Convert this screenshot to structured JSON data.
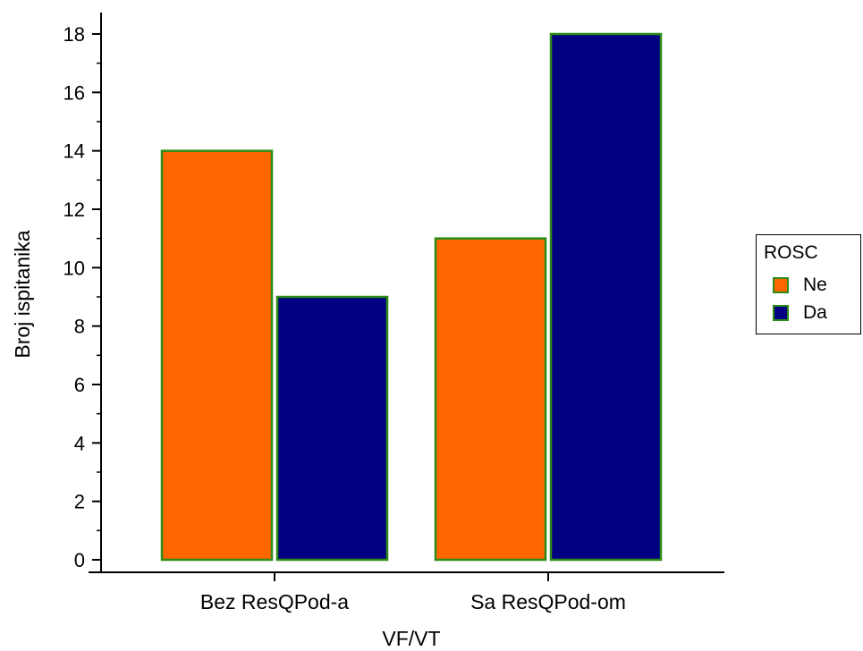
{
  "chart_data": {
    "type": "bar",
    "title": "",
    "xlabel": "VF/VT",
    "ylabel": "Broj ispitanika",
    "categories": [
      "Bez ResQPod-a",
      "Sa ResQPod-om"
    ],
    "series": [
      {
        "name": "Ne",
        "color": "#ff6600",
        "values": [
          14,
          11
        ]
      },
      {
        "name": "Da",
        "color": "#000080",
        "values": [
          9,
          18
        ]
      }
    ],
    "bar_edge_color": "#2e8b18",
    "ylim": [
      0,
      18
    ],
    "yticks": [
      0,
      2,
      4,
      6,
      8,
      10,
      12,
      14,
      16,
      18
    ],
    "grid": false,
    "legend": {
      "title": "ROSC",
      "position": "right"
    }
  }
}
